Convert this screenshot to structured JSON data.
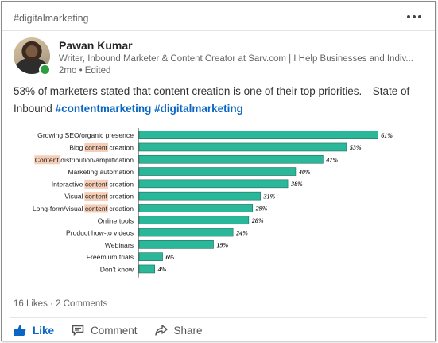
{
  "post": {
    "hashtag": "#digitalmarketing",
    "author_name": "Pawan Kumar",
    "author_headline": "Writer, Inbound Marketer & Content Creator at Sarv.com | I Help Businesses and Indiv...",
    "meta": "2mo • Edited",
    "text": "53% of marketers stated that content creation is one of their top priorities.—State of Inbound ",
    "hashtag_1": "#contentmarketing",
    "hashtag_2": "#digitalmarketing",
    "reactions": "16 Likes · 2 Comments",
    "actions": {
      "like": "Like",
      "comment": "Comment",
      "share": "Share"
    }
  },
  "colors": {
    "bar": "#2bb89a",
    "bar_stroke": "#1f6b5a",
    "highlight": "#f6cdb7",
    "link": "#0a66c2"
  },
  "icons": {
    "more": "more-horizontal-icon",
    "like": "thumbs-up-icon",
    "comment": "comment-icon",
    "share": "share-arrow-icon"
  },
  "chart_data": {
    "type": "bar",
    "orientation": "horizontal",
    "categories": [
      "Growing SEO/organic presence",
      "Blog content creation",
      "Content distribution/amplification",
      "Marketing automation",
      "Interactive content creation",
      "Visual content creation",
      "Long-form/visual content creation",
      "Online tools",
      "Product how-to videos",
      "Webinars",
      "Freemium trials",
      "Don't know"
    ],
    "values": [
      61,
      53,
      47,
      40,
      38,
      31,
      29,
      28,
      24,
      19,
      6,
      4
    ],
    "data_labels": [
      "61%",
      "53%",
      "47%",
      "40%",
      "38%",
      "31%",
      "29%",
      "28%",
      "24%",
      "19%",
      "6%",
      "4%"
    ],
    "highlighted_word": "content",
    "xlim": [
      0,
      65
    ],
    "grid": false,
    "legend": "none"
  }
}
